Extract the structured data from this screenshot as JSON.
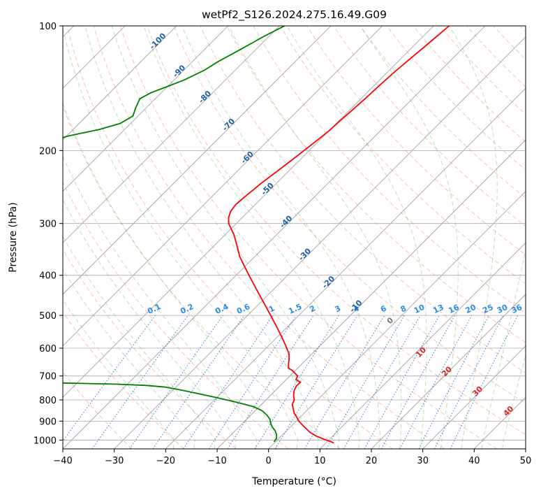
{
  "chart_data": {
    "type": "line",
    "title": "wetPf2_S126.2024.275.16.49.G09",
    "xlabel": "Temperature (°C)",
    "ylabel": "Pressure (hPa)",
    "xlim": [
      -40,
      50
    ],
    "ylim": [
      1050,
      100
    ],
    "y_scale": "log",
    "x_ticks": [
      -40,
      -30,
      -20,
      -10,
      0,
      10,
      20,
      30,
      40,
      50
    ],
    "x_tick_labels": [
      "−40",
      "−30",
      "−20",
      "−10",
      "0",
      "10",
      "20",
      "30",
      "40",
      "50"
    ],
    "y_ticks": [
      1000,
      900,
      800,
      700,
      600,
      500,
      400,
      300,
      200,
      100
    ],
    "y_tick_labels": [
      "1000",
      "900",
      "800",
      "700",
      "600",
      "500",
      "400",
      "300",
      "200",
      "100"
    ],
    "grid": true,
    "isotherm_labels": [
      "-100",
      "-90",
      "-80",
      "-70",
      "-60",
      "-50",
      "-40",
      "-30",
      "-20",
      "-10"
    ],
    "isotherm_label_values": [
      -100,
      -90,
      -80,
      -70,
      -60,
      -50,
      -40,
      -30,
      -20,
      -10
    ],
    "mixing_ratio_labels": [
      "0.1",
      "0.2",
      "0.4",
      "0.6",
      "1",
      "1.5",
      "2",
      "3",
      "4",
      "6",
      "8",
      "10",
      "13",
      "16",
      "20",
      "25",
      "30",
      "36"
    ],
    "mixing_ratio_values": [
      0.1,
      0.2,
      0.4,
      0.6,
      1,
      1.5,
      2,
      3,
      4,
      6,
      8,
      10,
      13,
      16,
      20,
      25,
      30,
      36
    ],
    "moist_adiabat_labels": [
      "0",
      "10",
      "20",
      "30",
      "40"
    ],
    "moist_adiabat_values": [
      0,
      10,
      20,
      30,
      40
    ],
    "series": [
      {
        "color": "#ff0000",
        "p": [
          1015,
          1000,
          980,
          960,
          940,
          920,
          900,
          880,
          860,
          840,
          820,
          800,
          780,
          760,
          740,
          725,
          715,
          700,
          690,
          680,
          670,
          655,
          640,
          620,
          600,
          580,
          560,
          540,
          520,
          500,
          480,
          460,
          440,
          420,
          400,
          380,
          360,
          340,
          320,
          300,
          290,
          280,
          270,
          260,
          250,
          240,
          230,
          220,
          210,
          200,
          190,
          180,
          170,
          160,
          150,
          140,
          130,
          120,
          110,
          100
        ],
        "t": [
          11.5,
          9.5,
          7,
          5,
          3.5,
          2,
          0.5,
          -0.7,
          -2,
          -3,
          -4,
          -4.5,
          -5.5,
          -6.3,
          -6.8,
          -6.7,
          -8.1,
          -8.5,
          -9.5,
          -10.5,
          -11.8,
          -12.6,
          -13.3,
          -14.4,
          -16,
          -17.7,
          -19.5,
          -21.4,
          -23.4,
          -25.5,
          -27.7,
          -30,
          -32.4,
          -34.9,
          -37.5,
          -40.2,
          -43,
          -45.5,
          -48.2,
          -51.5,
          -52.7,
          -53.5,
          -53.8,
          -53.6,
          -53.3,
          -53,
          -52.5,
          -52,
          -51.5,
          -51,
          -50.5,
          -50,
          -49.8,
          -49.5,
          -49.2,
          -49,
          -48.7,
          -48.2,
          -47.6,
          -47
        ]
      },
      {
        "color": "#008000",
        "p": [
          1010,
          990,
          970,
          950,
          930,
          910,
          890,
          870,
          850,
          830,
          810,
          790,
          770,
          755,
          745,
          738,
          733,
          728,
          725,
          722,
          718,
          712,
          700,
          688,
          675,
          662,
          650,
          638,
          625,
          612,
          600,
          593,
          560,
          520,
          480,
          455,
          450,
          445,
          440,
          435,
          430,
          425,
          418,
          410,
          405,
          400,
          390,
          370,
          350,
          330,
          318,
          310,
          305,
          298,
          290,
          280,
          270,
          265,
          262,
          258,
          254,
          250,
          245,
          240,
          232,
          225,
          215,
          205,
          198,
          192,
          188,
          185,
          182,
          178,
          172,
          165,
          158,
          150,
          145,
          140,
          135,
          128,
          122,
          118,
          114,
          110,
          106,
          103,
          100
        ],
        "t": [
          -0.3,
          -0.5,
          -1.2,
          -2.2,
          -3.5,
          -4.6,
          -5.5,
          -6.9,
          -8.6,
          -11.2,
          -15.3,
          -20,
          -25,
          -29,
          -32,
          -36,
          -42,
          -53,
          -62,
          -72,
          -82,
          -88,
          -93,
          -88,
          -85,
          -87,
          -95,
          -105,
          -115,
          -125,
          -135,
          -150,
          -150,
          -150,
          -150,
          -150,
          -145,
          -140,
          -137,
          -135,
          -140,
          -145,
          -148,
          -150,
          -150,
          -150,
          -150,
          -150,
          -150,
          -150,
          -145,
          -140,
          -135,
          -130,
          -127,
          -130,
          -135,
          -140,
          -145,
          -148,
          -145,
          -140,
          -130,
          -120,
          -112,
          -105,
          -100,
          -100,
          -101,
          -102,
          -101,
          -100,
          -98,
          -95,
          -92,
          -91,
          -92,
          -93,
          -92,
          -90,
          -88,
          -86,
          -85,
          -84,
          -83,
          -82,
          -81,
          -80,
          -79
        ]
      }
    ]
  }
}
